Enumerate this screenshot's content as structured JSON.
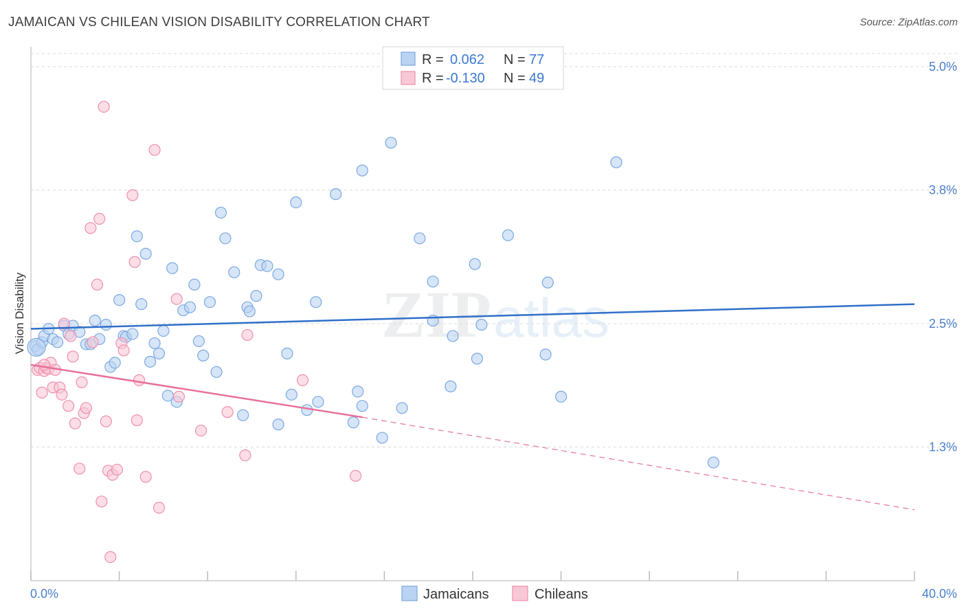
{
  "header": {
    "title": "JAMAICAN VS CHILEAN VISION DISABILITY CORRELATION CHART",
    "source": "Source: ZipAtlas.com"
  },
  "watermark": {
    "zip": "ZIP",
    "atlas": "atlas"
  },
  "colors": {
    "jamaican_fill": "#bad3f2",
    "jamaican_stroke": "#7aa8e0",
    "jamaican_line": "#2f6fc9",
    "chilean_fill": "#f8c8d6",
    "chilean_stroke": "#ee8fae",
    "chilean_line": "#e8709a",
    "tick_text": "#4a7fcb",
    "grid": "#d9d9d9"
  },
  "legend_box": {
    "r_label": "R =",
    "n_label": "N =",
    "rows": [
      {
        "r": "0.062",
        "n": "77"
      },
      {
        "r": "-0.130",
        "n": "49"
      }
    ]
  },
  "bottom_legend": [
    "Jamaicans",
    "Chileans"
  ],
  "chart_data": {
    "type": "scatter",
    "title": "JAMAICAN VS CHILEAN VISION DISABILITY CORRELATION CHART",
    "xlabel": "",
    "ylabel": "Vision Disability",
    "xlim": [
      0,
      40
    ],
    "ylim": [
      0,
      5.0
    ],
    "x_tick_labels": [
      "0.0%",
      "40.0%"
    ],
    "y_ticks": [
      1.3,
      2.5,
      3.8,
      5.0
    ],
    "y_tick_labels": [
      "1.3%",
      "2.5%",
      "3.8%",
      "5.0%"
    ],
    "grid": "horizontal dashed",
    "legend_position": "top-center",
    "series": [
      {
        "name": "Jamaicans",
        "r": 0.062,
        "n": 77,
        "trend": {
          "x": [
            0,
            40
          ],
          "y": [
            2.45,
            2.69
          ]
        },
        "points": [
          [
            0.2,
            2.28
          ],
          [
            0.3,
            2.25
          ],
          [
            0.5,
            2.32
          ],
          [
            0.6,
            2.38
          ],
          [
            0.8,
            2.45
          ],
          [
            1.0,
            2.35
          ],
          [
            1.2,
            2.32
          ],
          [
            1.5,
            2.48
          ],
          [
            1.7,
            2.4
          ],
          [
            1.9,
            2.48
          ],
          [
            2.2,
            2.42
          ],
          [
            2.5,
            2.3
          ],
          [
            2.7,
            2.3
          ],
          [
            2.9,
            2.53
          ],
          [
            3.1,
            2.35
          ],
          [
            3.4,
            2.49
          ],
          [
            3.6,
            2.08
          ],
          [
            3.8,
            2.12
          ],
          [
            4.0,
            2.73
          ],
          [
            4.2,
            2.38
          ],
          [
            4.3,
            2.37
          ],
          [
            4.6,
            2.4
          ],
          [
            4.8,
            3.35
          ],
          [
            5.0,
            2.69
          ],
          [
            5.2,
            3.18
          ],
          [
            5.4,
            2.13
          ],
          [
            5.6,
            2.31
          ],
          [
            5.8,
            2.21
          ],
          [
            6.0,
            2.43
          ],
          [
            6.2,
            1.8
          ],
          [
            6.4,
            3.04
          ],
          [
            6.6,
            1.74
          ],
          [
            6.9,
            2.63
          ],
          [
            7.2,
            2.66
          ],
          [
            7.4,
            2.88
          ],
          [
            7.6,
            2.33
          ],
          [
            7.8,
            2.19
          ],
          [
            8.1,
            2.71
          ],
          [
            8.4,
            2.03
          ],
          [
            8.6,
            3.58
          ],
          [
            8.8,
            3.33
          ],
          [
            9.2,
            3.0
          ],
          [
            9.6,
            1.61
          ],
          [
            9.8,
            2.66
          ],
          [
            9.9,
            2.62
          ],
          [
            10.2,
            2.77
          ],
          [
            10.4,
            3.07
          ],
          [
            10.7,
            3.06
          ],
          [
            11.2,
            2.98
          ],
          [
            11.2,
            1.52
          ],
          [
            11.6,
            2.21
          ],
          [
            11.8,
            1.81
          ],
          [
            12.0,
            3.68
          ],
          [
            12.5,
            1.66
          ],
          [
            12.9,
            2.71
          ],
          [
            13.0,
            1.74
          ],
          [
            13.8,
            3.76
          ],
          [
            14.6,
            1.54
          ],
          [
            14.8,
            1.84
          ],
          [
            15.0,
            3.99
          ],
          [
            15.0,
            1.7
          ],
          [
            15.9,
            1.39
          ],
          [
            16.3,
            4.26
          ],
          [
            16.8,
            1.68
          ],
          [
            17.6,
            3.33
          ],
          [
            18.2,
            2.53
          ],
          [
            18.2,
            2.91
          ],
          [
            19.0,
            1.89
          ],
          [
            19.1,
            2.38
          ],
          [
            20.1,
            3.08
          ],
          [
            20.2,
            2.16
          ],
          [
            20.4,
            2.49
          ],
          [
            21.6,
            3.36
          ],
          [
            23.3,
            2.2
          ],
          [
            23.4,
            2.9
          ],
          [
            24.0,
            1.79
          ],
          [
            26.5,
            4.07
          ],
          [
            30.9,
            1.15
          ]
        ]
      },
      {
        "name": "Chileans",
        "r": -0.13,
        "n": 49,
        "trend": {
          "x": [
            0,
            15
          ],
          "y": [
            2.1,
            1.59
          ]
        },
        "trend_dashed": {
          "x": [
            15,
            40
          ],
          "y": [
            1.59,
            0.69
          ]
        },
        "points": [
          [
            0.3,
            2.05
          ],
          [
            0.4,
            2.07
          ],
          [
            0.5,
            1.83
          ],
          [
            0.6,
            2.04
          ],
          [
            0.7,
            2.07
          ],
          [
            0.8,
            2.06
          ],
          [
            0.9,
            2.12
          ],
          [
            1.0,
            1.88
          ],
          [
            1.1,
            2.05
          ],
          [
            1.3,
            1.88
          ],
          [
            1.4,
            1.81
          ],
          [
            1.5,
            2.5
          ],
          [
            1.7,
            1.7
          ],
          [
            1.8,
            2.38
          ],
          [
            1.9,
            2.18
          ],
          [
            2.0,
            1.53
          ],
          [
            2.2,
            1.09
          ],
          [
            2.3,
            1.93
          ],
          [
            2.4,
            1.63
          ],
          [
            2.5,
            1.68
          ],
          [
            2.7,
            3.43
          ],
          [
            2.8,
            2.32
          ],
          [
            3.0,
            2.88
          ],
          [
            3.1,
            3.52
          ],
          [
            3.2,
            0.77
          ],
          [
            3.3,
            4.61
          ],
          [
            3.4,
            1.55
          ],
          [
            3.5,
            1.07
          ],
          [
            3.6,
            0.23
          ],
          [
            3.7,
            1.03
          ],
          [
            3.9,
            1.08
          ],
          [
            4.1,
            2.31
          ],
          [
            4.2,
            2.24
          ],
          [
            4.6,
            3.75
          ],
          [
            4.7,
            3.1
          ],
          [
            4.8,
            1.56
          ],
          [
            4.9,
            1.95
          ],
          [
            5.2,
            1.01
          ],
          [
            5.6,
            4.19
          ],
          [
            5.8,
            0.71
          ],
          [
            6.6,
            2.74
          ],
          [
            6.7,
            1.79
          ],
          [
            7.7,
            1.46
          ],
          [
            8.9,
            1.64
          ],
          [
            9.7,
            1.22
          ],
          [
            9.8,
            2.39
          ],
          [
            12.3,
            1.95
          ],
          [
            14.7,
            1.02
          ],
          [
            0.6,
            2.1
          ]
        ]
      }
    ]
  }
}
